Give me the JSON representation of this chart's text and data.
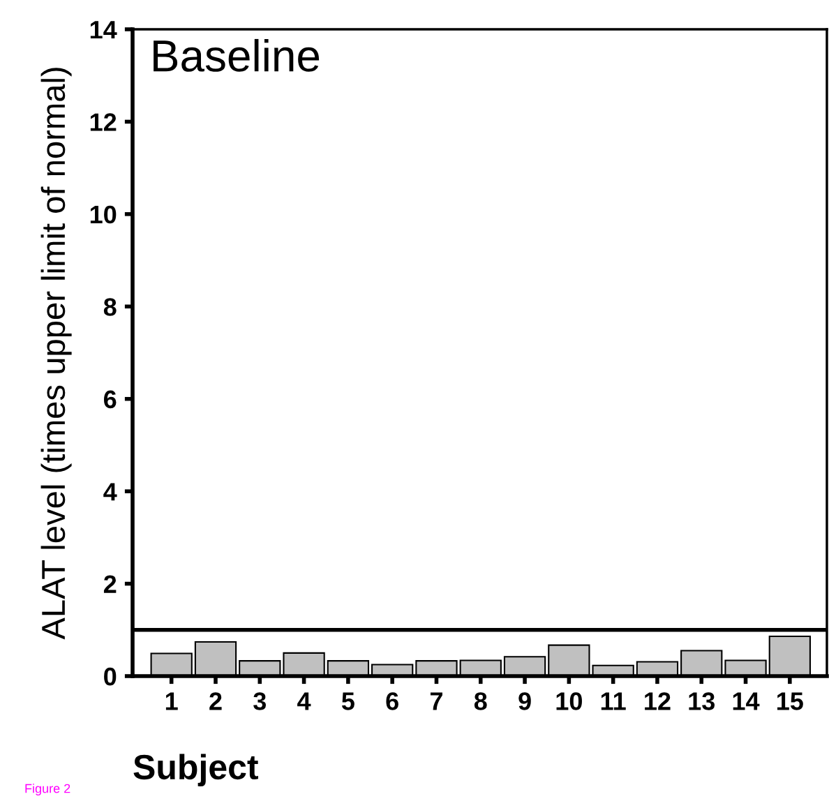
{
  "chart_data": {
    "type": "bar",
    "xlabel": "Subject",
    "ylabel": "ALAT level (times upper limit of normal)",
    "categories": [
      "1",
      "2",
      "3",
      "4",
      "5",
      "6",
      "7",
      "8",
      "9",
      "10",
      "11",
      "12",
      "13",
      "14",
      "15"
    ],
    "values": [
      0.49,
      0.74,
      0.33,
      0.5,
      0.33,
      0.25,
      0.33,
      0.34,
      0.42,
      0.67,
      0.23,
      0.31,
      0.55,
      0.34,
      0.86
    ],
    "color": "#c0c0c0",
    "ylim": [
      0,
      14
    ],
    "yticks": [
      0,
      2,
      4,
      6,
      8,
      10,
      12,
      14
    ],
    "ref_lines": [
      {
        "axis": "y",
        "value": 1,
        "color": "#000000"
      }
    ],
    "annotations": [
      "Baseline",
      "Figure 2"
    ],
    "grid": false,
    "legend": false
  }
}
